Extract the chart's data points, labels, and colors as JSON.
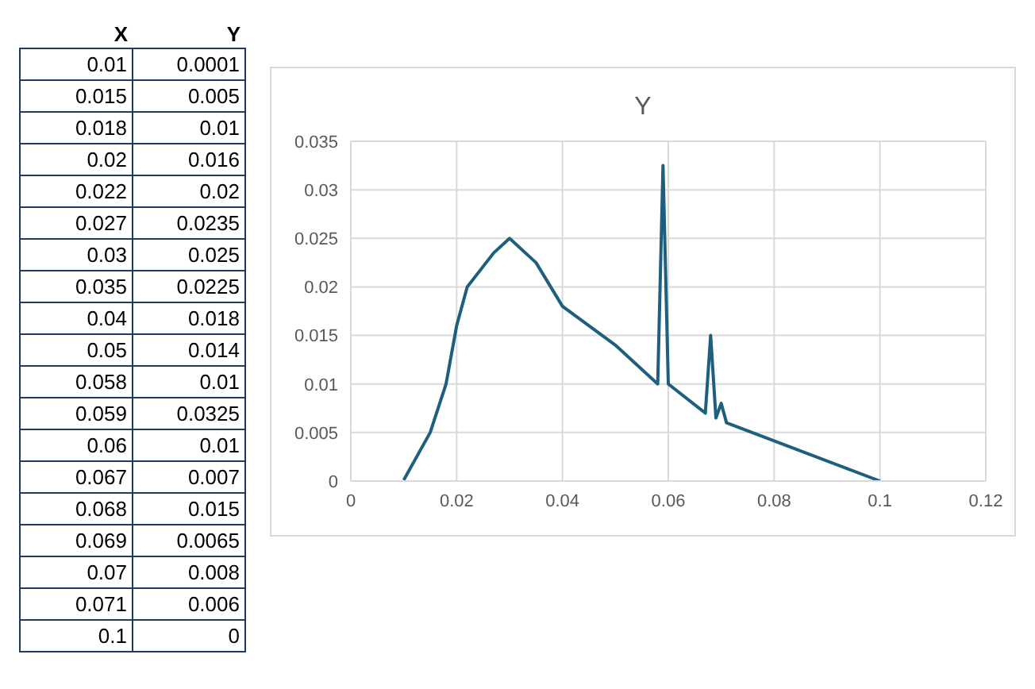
{
  "chart_data": [
    {
      "type": "other",
      "annotations": [
        "X",
        "Y",
        "0.01",
        "0.0001",
        "0.015",
        "0.005",
        "0.018",
        "0.01",
        "0.02",
        "0.016",
        "0.022",
        "0.02",
        "0.027",
        "0.0235",
        "0.03",
        "0.025",
        "0.035",
        "0.0225",
        "0.04",
        "0.018",
        "0.05",
        "0.014",
        "0.058",
        "0.01",
        "0.059",
        "0.0325",
        "0.06",
        "0.01",
        "0.067",
        "0.007",
        "0.068",
        "0.015",
        "0.069",
        "0.0065",
        "0.07",
        "0.008",
        "0.071",
        "0.006",
        "0.1",
        "0"
      ]
    },
    {
      "type": "line",
      "title": "Y",
      "x": [
        0.01,
        0.015,
        0.018,
        0.02,
        0.022,
        0.027,
        0.03,
        0.035,
        0.04,
        0.05,
        0.058,
        0.059,
        0.06,
        0.067,
        0.068,
        0.069,
        0.07,
        0.071,
        0.1
      ],
      "series": [
        {
          "color": "#1f5f7e",
          "values": [
            0.0001,
            0.005,
            0.01,
            0.016,
            0.02,
            0.0235,
            0.025,
            0.0225,
            0.018,
            0.014,
            0.01,
            0.0325,
            0.01,
            0.007,
            0.015,
            0.0065,
            0.008,
            0.006,
            0
          ]
        }
      ],
      "xlim": [
        0,
        0.12
      ],
      "xticks": [
        0,
        0.02,
        0.04,
        0.06,
        0.08,
        0.1,
        0.12
      ],
      "ylim": [
        0,
        0.035
      ],
      "yticks": [
        0,
        0.005,
        0.01,
        0.015,
        0.02,
        0.025,
        0.03,
        0.035
      ],
      "grid": true,
      "marker": "none",
      "line_style": "solid"
    }
  ]
}
